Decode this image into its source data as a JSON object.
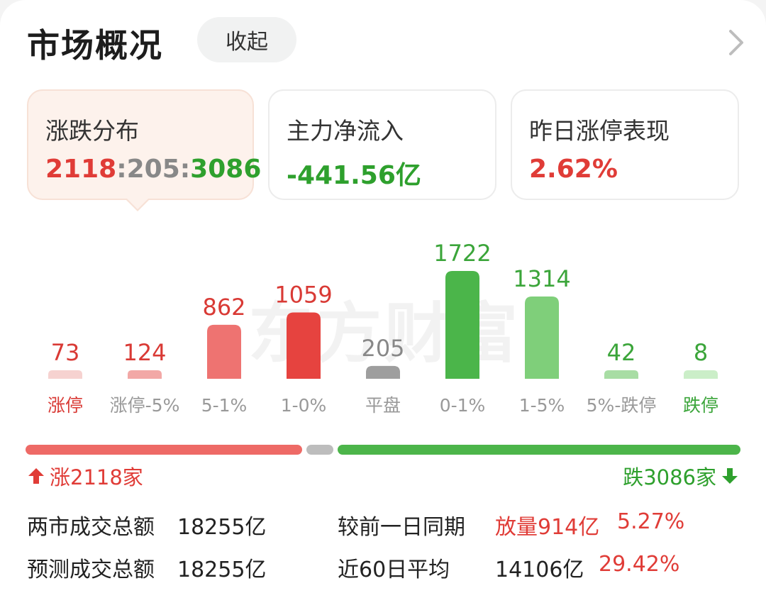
{
  "header": {
    "title": "市场概况",
    "collapse_label": "收起"
  },
  "tabs": [
    {
      "label": "涨跌分布",
      "value_up": "2118",
      "sep": ":",
      "value_flat": "205",
      "value_down": "3086"
    },
    {
      "label": "主力净流入",
      "value": "-441.56亿"
    },
    {
      "label": "昨日涨停表现",
      "value": "2.62%"
    }
  ],
  "watermark": "东方财富",
  "chart_data": {
    "type": "bar",
    "categories": [
      "涨停",
      "涨停-5%",
      "5-1%",
      "1-0%",
      "平盘",
      "0-1%",
      "1-5%",
      "5%-跌停",
      "跌停"
    ],
    "values": [
      73,
      124,
      862,
      1059,
      205,
      1722,
      1314,
      42,
      8
    ],
    "value_labels": [
      "73",
      "124",
      "862",
      "1059",
      "205",
      "1722",
      "1314",
      "42",
      "8"
    ],
    "colors": [
      "#f6d2d0",
      "#f2a8a6",
      "#ee7371",
      "#e6433f",
      "#9e9e9e",
      "#4bb54a",
      "#7fcf7a",
      "#a8dda4",
      "#cbeec8"
    ],
    "label_colors": [
      "#d93a35",
      "#d93a35",
      "#d93a35",
      "#d93a35",
      "#888888",
      "#3ba53a",
      "#3ba53a",
      "#3ba53a",
      "#3ba53a"
    ],
    "category_colors": [
      "#d93a35",
      "#999999",
      "#999999",
      "#999999",
      "#999999",
      "#999999",
      "#999999",
      "#999999",
      "#3ba53a"
    ]
  },
  "summary": {
    "up_label": "涨2118家",
    "down_label": "跌3086家",
    "up_count": 2118,
    "flat_count": 205,
    "down_count": 3086
  },
  "stats": {
    "row1_label": "两市成交总额",
    "row1_value": "18255亿",
    "row1_compare_label": "较前一日同期",
    "row1_compare_value": "放量914亿",
    "row1_compare_pct": "5.27%",
    "row2_label": "预测成交总额",
    "row2_value": "18255亿",
    "row2_compare_label": "近60日平均",
    "row2_compare_value": "14106亿",
    "row2_compare_pct": "29.42%"
  },
  "colors": {
    "up": "#e03c37",
    "down": "#2ea02d",
    "flat": "#888888",
    "accent_bg": "#fdf2ec"
  }
}
